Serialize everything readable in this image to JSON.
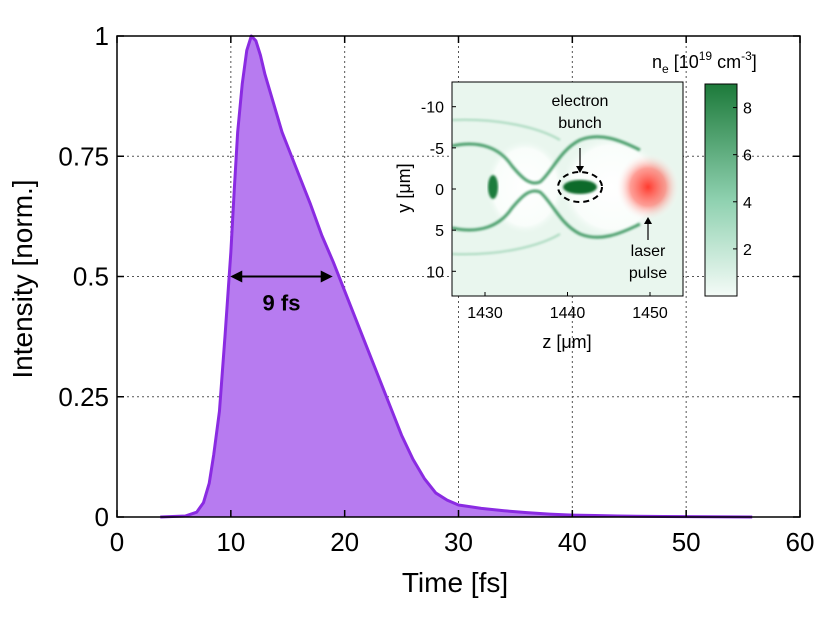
{
  "chart_data": [
    {
      "type": "area",
      "xlabel": "Time [fs]",
      "ylabel": "Intensity [norm.]",
      "xlim": [
        0,
        60
      ],
      "ylim": [
        0,
        1
      ],
      "xticks": [
        0,
        10,
        20,
        30,
        40,
        50,
        60
      ],
      "xtick_labels": [
        "0",
        "10",
        "20",
        "30",
        "40",
        "50",
        "60"
      ],
      "yticks": [
        0,
        0.25,
        0.5,
        0.75,
        1
      ],
      "ytick_labels": [
        "0",
        "0.25",
        "0.5",
        "0.75",
        "1"
      ],
      "grid": true,
      "line_color": "#8a2be2",
      "fill_color": "#b77bf0",
      "x": [
        3.8,
        6,
        7,
        7.6,
        8.1,
        8.5,
        9,
        9.5,
        10,
        10.3,
        10.6,
        11,
        11.4,
        11.8,
        12.2,
        12.6,
        13,
        13.5,
        14,
        14.5,
        15,
        16,
        17,
        18,
        19,
        20,
        21,
        22,
        23,
        24,
        25,
        26,
        27,
        28,
        29,
        30,
        32,
        34,
        36,
        38,
        40,
        42,
        44,
        48,
        52,
        55.8
      ],
      "y": [
        0,
        0.002,
        0.01,
        0.03,
        0.07,
        0.13,
        0.22,
        0.38,
        0.55,
        0.68,
        0.8,
        0.9,
        0.97,
        1.0,
        0.99,
        0.96,
        0.92,
        0.88,
        0.84,
        0.8,
        0.77,
        0.71,
        0.65,
        0.585,
        0.53,
        0.47,
        0.41,
        0.35,
        0.29,
        0.23,
        0.17,
        0.12,
        0.08,
        0.05,
        0.035,
        0.025,
        0.018,
        0.013,
        0.009,
        0.006,
        0.004,
        0.003,
        0.002,
        0.001,
        0.0005,
        0
      ],
      "annotation": {
        "text": "9 fs",
        "x_start": 9.95,
        "x_end": 18.95,
        "y": 0.5
      }
    },
    {
      "type": "heatmap",
      "xlabel": "z [μm]",
      "ylabel": "y [μm]",
      "xlim": [
        1426,
        1454
      ],
      "ylim": [
        -13,
        13
      ],
      "xticks": [
        1430,
        1440,
        1450
      ],
      "xtick_labels": [
        "1430",
        "1440",
        "1450"
      ],
      "yticks": [
        -10,
        -5,
        0,
        5,
        10
      ],
      "ytick_labels": [
        "-10",
        "-5",
        "0",
        "5",
        "10"
      ],
      "colorbar": {
        "title_prefix": "n",
        "title_sub": "e",
        "title_main": " [10",
        "title_exp": "19",
        "title_unit": " cm",
        "title_unit_exp": "-3",
        "title_close": "]",
        "range": [
          0,
          9
        ],
        "ticks": [
          2,
          4,
          6,
          8
        ],
        "tick_labels": [
          "2",
          "4",
          "6",
          "8"
        ],
        "color_low": "#f4fbf7",
        "color_high": "#1d7a3a"
      },
      "features": {
        "electron_bunch": {
          "z": 1441.4,
          "y": 0,
          "label_line1": "electron",
          "label_line2": "bunch"
        },
        "laser_pulse": {
          "z": 1450.2,
          "y": 0,
          "label_line1": "laser",
          "label_line2": "pulse",
          "color": "#ff3b2f"
        }
      }
    }
  ]
}
